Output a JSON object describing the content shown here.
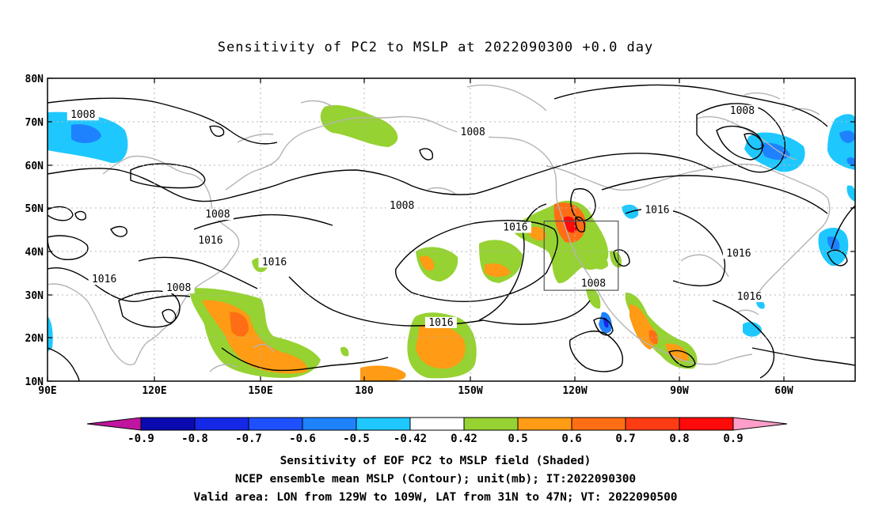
{
  "title": "Sensitivity of PC2 to MSLP at 2022090300 +0.0 day",
  "map": {
    "lat_ticks": [
      "80N",
      "70N",
      "60N",
      "50N",
      "40N",
      "30N",
      "20N",
      "10N"
    ],
    "lon_ticks": [
      "90E",
      "120E",
      "150E",
      "180",
      "150W",
      "120W",
      "90W",
      "60W"
    ],
    "contour_labels": [
      {
        "text": "1008",
        "lon": 100,
        "lat": 71
      },
      {
        "text": "1008",
        "lon": 210,
        "lat": 67
      },
      {
        "text": "1008",
        "lon": 286,
        "lat": 72
      },
      {
        "text": "1008",
        "lon": 138,
        "lat": 48
      },
      {
        "text": "1008",
        "lon": 190,
        "lat": 50
      },
      {
        "text": "1008",
        "lon": 244,
        "lat": 32
      },
      {
        "text": "1008",
        "lon": 127,
        "lat": 31
      },
      {
        "text": "1016",
        "lon": 222,
        "lat": 45
      },
      {
        "text": "1016",
        "lon": 262,
        "lat": 49
      },
      {
        "text": "1016",
        "lon": 285,
        "lat": 39
      },
      {
        "text": "1016",
        "lon": 288,
        "lat": 29
      },
      {
        "text": "1016",
        "lon": 136,
        "lat": 42
      },
      {
        "text": "1016",
        "lon": 154,
        "lat": 37
      },
      {
        "text": "1016",
        "lon": 106,
        "lat": 33
      },
      {
        "text": "1016",
        "lon": 201,
        "lat": 23
      }
    ],
    "valid_box": {
      "lon_min": 231,
      "lon_max": 251,
      "lat_min": 31,
      "lat_max": 47
    }
  },
  "colorbar": {
    "labels": [
      "-0.9",
      "-0.8",
      "-0.7",
      "-0.6",
      "-0.5",
      "-0.42",
      "0.42",
      "0.5",
      "0.6",
      "0.7",
      "0.8",
      "0.9"
    ],
    "colors": [
      "#c0159e",
      "#0a0ab0",
      "#1428e6",
      "#1e50ff",
      "#1e82ff",
      "#1ec8ff",
      "#ffffff",
      "#96d232",
      "#ff9b14",
      "#ff6e14",
      "#ff3c14",
      "#ff0a0a",
      "#ff9ec8"
    ]
  },
  "captions": [
    "Sensitivity of EOF PC2 to MSLP field (Shaded)",
    "NCEP ensemble mean MSLP (Contour); unit(mb); IT:2022090300",
    "Valid area: LON from 129W to 109W, LAT from 31N to 47N; VT: 2022090500"
  ]
}
